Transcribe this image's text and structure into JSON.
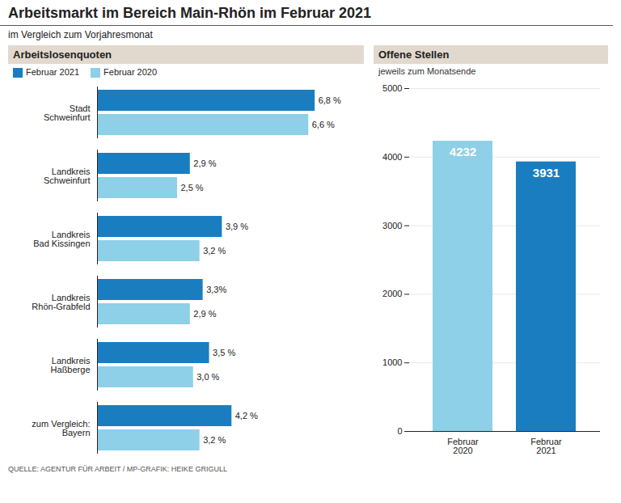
{
  "title": "Arbeitsmarkt im Bereich Main-Rhön im Februar 2021",
  "subtitle": "im Vergleich zum Vorjahresmonat",
  "source": "QUELLE: AGENTUR FÜR ARBEIT / MP-GRAFIK: HEIKE GRIGULL",
  "chart_data": [
    {
      "type": "bar",
      "orientation": "horizontal",
      "title": "Arbeitslosenquoten",
      "categories": [
        "Stadt\nSchweinfurt",
        "Landkreis\nSchweinfurt",
        "Landkreis\nBad Kissingen",
        "Landkreis\nRhön-Grabfeld",
        "Landkreis\nHaßberge",
        "zum Vergleich:\nBayern"
      ],
      "series": [
        {
          "name": "Februar 2021",
          "color": "#1a7dc0",
          "values": [
            6.8,
            2.9,
            3.9,
            3.3,
            3.5,
            4.2
          ],
          "value_labels": [
            "6,8 %",
            "2,9 %",
            "3,9 %",
            "3,3%",
            "3,5 %",
            "4,2 %"
          ]
        },
        {
          "name": "Februar 2020",
          "color": "#8dd0e8",
          "values": [
            6.6,
            2.5,
            3.2,
            2.9,
            3.0,
            3.2
          ],
          "value_labels": [
            "6,6 %",
            "2,5 %",
            "3,2 %",
            "2,9 %",
            "3,0 %",
            "3,2 %"
          ]
        }
      ],
      "xlim": [
        0,
        7.2
      ],
      "data_labels": true,
      "tick_labels": "y",
      "legend": "top"
    },
    {
      "type": "bar",
      "title": "Offene Stellen",
      "subtitle": "jeweils zum Monatsende",
      "categories": [
        "Februar\n2020",
        "Februar\n2021"
      ],
      "values": [
        4232,
        3931
      ],
      "colors": [
        "#8dd0e8",
        "#1a7dc0"
      ],
      "ylim": [
        0,
        5000
      ],
      "yticks": [
        0,
        1000,
        2000,
        3000,
        4000,
        5000
      ],
      "grid": true,
      "data_labels": true
    }
  ]
}
